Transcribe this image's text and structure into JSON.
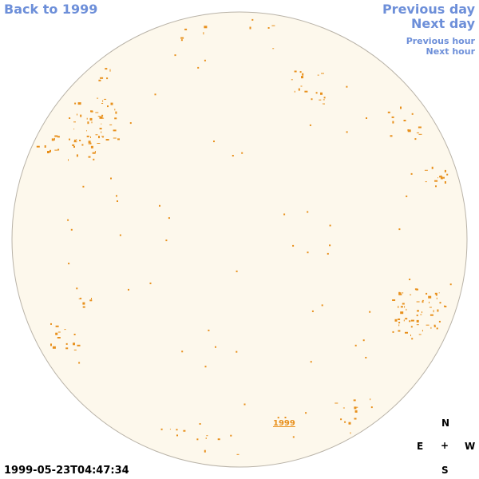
{
  "navigation": {
    "back_label": "Back to 1999",
    "previous_day_label": "Previous day",
    "next_day_label": "Next day",
    "previous_hour_label": "Previous hour",
    "next_hour_label": "Next hour"
  },
  "timestamp": "1999-05-23T04:47:34",
  "disk": {
    "year_label": "1999",
    "disk_color": "#fdf8ec",
    "limb_color": "#b9b3a8",
    "feature_color": "#e8901c"
  },
  "compass": {
    "north": "N",
    "east": "E",
    "center": "+",
    "west": "W",
    "south": "S"
  },
  "colors": {
    "link": "#6d8fd9",
    "text": "#000000",
    "background": "#ffffff"
  }
}
